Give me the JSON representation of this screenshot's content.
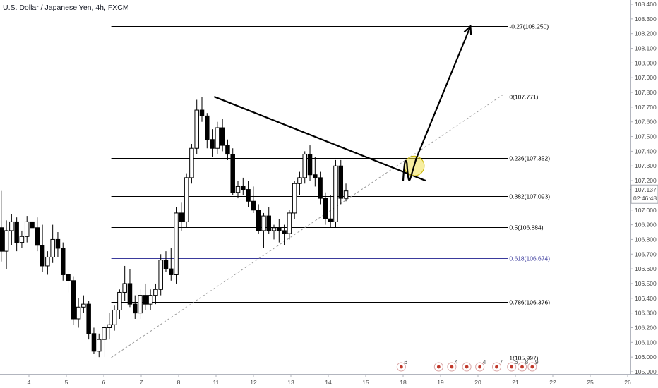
{
  "header": {
    "title": "U.S. Dollar / Japanese Yen, 4h, FXCM"
  },
  "colors": {
    "up": "#ffffff",
    "down": "#000000",
    "wick": "#000000",
    "fib_line": "#000000",
    "fib_0618": "#3a3a9c",
    "trend_dotted": "#9a9a9a",
    "highlight": "#f0e050",
    "price_tag_bg": "#ffffff",
    "axis_text": "#4a4a4a"
  },
  "chart_data": {
    "type": "candlestick",
    "ylim": [
      105.9,
      108.4
    ],
    "y_ticks": [
      "108.400",
      "108.300",
      "108.200",
      "108.100",
      "108.000",
      "107.900",
      "107.800",
      "107.700",
      "107.600",
      "107.500",
      "107.400",
      "107.300",
      "107.200",
      "107.100",
      "107.000",
      "106.900",
      "106.800",
      "106.700",
      "106.600",
      "106.500",
      "106.400",
      "106.300",
      "106.200",
      "106.100",
      "106.000",
      "105.900"
    ],
    "x_ticks": [
      {
        "label": "4",
        "day": 4
      },
      {
        "label": "5",
        "day": 5
      },
      {
        "label": "6",
        "day": 6
      },
      {
        "label": "7",
        "day": 7
      },
      {
        "label": "8",
        "day": 8
      },
      {
        "label": "11",
        "day": 9
      },
      {
        "label": "12",
        "day": 10
      },
      {
        "label": "13",
        "day": 11
      },
      {
        "label": "14",
        "day": 12
      },
      {
        "label": "15",
        "day": 13
      },
      {
        "label": "18",
        "day": 14
      },
      {
        "label": "19",
        "day": 15
      },
      {
        "label": "20",
        "day": 16
      },
      {
        "label": "21",
        "day": 17
      },
      {
        "label": "22",
        "day": 18
      },
      {
        "label": "25",
        "day": 19
      },
      {
        "label": "26",
        "day": 20
      }
    ],
    "current_price": {
      "price": "107.137",
      "countdown": "02:46:48",
      "value": 107.137
    },
    "fib_levels": [
      {
        "label": "-0.27(108.250)",
        "value": 108.25,
        "special": false
      },
      {
        "label": "0(107.771)",
        "value": 107.771,
        "special": false
      },
      {
        "label": "0.236(107.352)",
        "value": 107.352,
        "special": false
      },
      {
        "label": "0.382(107.093)",
        "value": 107.093,
        "special": false
      },
      {
        "label": "0.5(106.884)",
        "value": 106.884,
        "special": false
      },
      {
        "label": "0.618(106.674)",
        "value": 106.674,
        "special": true
      },
      {
        "label": "0.786(106.376)",
        "value": 106.376,
        "special": false
      },
      {
        "label": "1(105.997)",
        "value": 105.997,
        "special": false
      }
    ],
    "fib_span": {
      "x_start_day": 6.2,
      "x_end_day": 16.8
    },
    "candles": [
      {
        "o": 106.88,
        "h": 107.13,
        "l": 106.65,
        "c": 106.72
      },
      {
        "o": 106.72,
        "h": 106.93,
        "l": 106.6,
        "c": 106.86
      },
      {
        "o": 106.86,
        "h": 106.97,
        "l": 106.76,
        "c": 106.92
      },
      {
        "o": 106.92,
        "h": 106.95,
        "l": 106.72,
        "c": 106.78
      },
      {
        "o": 106.78,
        "h": 106.86,
        "l": 106.74,
        "c": 106.82
      },
      {
        "o": 106.82,
        "h": 106.96,
        "l": 106.78,
        "c": 106.92
      },
      {
        "o": 106.92,
        "h": 107.1,
        "l": 106.84,
        "c": 106.88
      },
      {
        "o": 106.88,
        "h": 106.95,
        "l": 106.72,
        "c": 106.76
      },
      {
        "o": 106.76,
        "h": 106.9,
        "l": 106.58,
        "c": 106.62
      },
      {
        "o": 106.62,
        "h": 106.72,
        "l": 106.56,
        "c": 106.68
      },
      {
        "o": 106.68,
        "h": 106.9,
        "l": 106.64,
        "c": 106.8
      },
      {
        "o": 106.8,
        "h": 106.85,
        "l": 106.68,
        "c": 106.74
      },
      {
        "o": 106.74,
        "h": 106.78,
        "l": 106.52,
        "c": 106.56
      },
      {
        "o": 106.56,
        "h": 106.6,
        "l": 106.44,
        "c": 106.52
      },
      {
        "o": 106.52,
        "h": 106.55,
        "l": 106.22,
        "c": 106.26
      },
      {
        "o": 106.26,
        "h": 106.4,
        "l": 106.2,
        "c": 106.34
      },
      {
        "o": 106.34,
        "h": 106.42,
        "l": 106.3,
        "c": 106.36
      },
      {
        "o": 106.36,
        "h": 106.38,
        "l": 106.12,
        "c": 106.16
      },
      {
        "o": 106.16,
        "h": 106.2,
        "l": 106.02,
        "c": 106.04
      },
      {
        "o": 106.04,
        "h": 106.16,
        "l": 106.0,
        "c": 106.12
      },
      {
        "o": 106.12,
        "h": 106.22,
        "l": 106.0,
        "c": 106.2
      },
      {
        "o": 106.2,
        "h": 106.3,
        "l": 106.12,
        "c": 106.22
      },
      {
        "o": 106.22,
        "h": 106.35,
        "l": 106.18,
        "c": 106.32
      },
      {
        "o": 106.32,
        "h": 106.46,
        "l": 106.26,
        "c": 106.44
      },
      {
        "o": 106.44,
        "h": 106.62,
        "l": 106.38,
        "c": 106.5
      },
      {
        "o": 106.5,
        "h": 106.6,
        "l": 106.34,
        "c": 106.36
      },
      {
        "o": 106.36,
        "h": 106.42,
        "l": 106.26,
        "c": 106.3
      },
      {
        "o": 106.3,
        "h": 106.46,
        "l": 106.26,
        "c": 106.42
      },
      {
        "o": 106.42,
        "h": 106.5,
        "l": 106.32,
        "c": 106.36
      },
      {
        "o": 106.36,
        "h": 106.46,
        "l": 106.32,
        "c": 106.42
      },
      {
        "o": 106.42,
        "h": 106.5,
        "l": 106.36,
        "c": 106.46
      },
      {
        "o": 106.46,
        "h": 106.7,
        "l": 106.42,
        "c": 106.66
      },
      {
        "o": 106.66,
        "h": 106.72,
        "l": 106.58,
        "c": 106.6
      },
      {
        "o": 106.6,
        "h": 106.74,
        "l": 106.52,
        "c": 106.56
      },
      {
        "o": 106.56,
        "h": 107.02,
        "l": 106.5,
        "c": 106.98
      },
      {
        "o": 106.98,
        "h": 107.05,
        "l": 106.86,
        "c": 106.92
      },
      {
        "o": 106.92,
        "h": 107.25,
        "l": 106.88,
        "c": 107.22
      },
      {
        "o": 107.22,
        "h": 107.45,
        "l": 107.18,
        "c": 107.42
      },
      {
        "o": 107.42,
        "h": 107.75,
        "l": 107.38,
        "c": 107.68
      },
      {
        "o": 107.68,
        "h": 107.77,
        "l": 107.6,
        "c": 107.64
      },
      {
        "o": 107.64,
        "h": 107.66,
        "l": 107.42,
        "c": 107.48
      },
      {
        "o": 107.48,
        "h": 107.55,
        "l": 107.36,
        "c": 107.42
      },
      {
        "o": 107.42,
        "h": 107.6,
        "l": 107.38,
        "c": 107.56
      },
      {
        "o": 107.56,
        "h": 107.62,
        "l": 107.4,
        "c": 107.44
      },
      {
        "o": 107.44,
        "h": 107.48,
        "l": 107.34,
        "c": 107.38
      },
      {
        "o": 107.38,
        "h": 107.42,
        "l": 107.1,
        "c": 107.12
      },
      {
        "o": 107.12,
        "h": 107.2,
        "l": 107.08,
        "c": 107.16
      },
      {
        "o": 107.16,
        "h": 107.22,
        "l": 107.1,
        "c": 107.14
      },
      {
        "o": 107.14,
        "h": 107.2,
        "l": 107.02,
        "c": 107.06
      },
      {
        "o": 107.06,
        "h": 107.16,
        "l": 106.98,
        "c": 107.0
      },
      {
        "o": 107.0,
        "h": 107.04,
        "l": 106.84,
        "c": 106.86
      },
      {
        "o": 106.86,
        "h": 106.98,
        "l": 106.74,
        "c": 106.96
      },
      {
        "o": 106.96,
        "h": 107.02,
        "l": 106.84,
        "c": 106.86
      },
      {
        "o": 106.86,
        "h": 106.9,
        "l": 106.8,
        "c": 106.88
      },
      {
        "o": 106.88,
        "h": 106.94,
        "l": 106.78,
        "c": 106.86
      },
      {
        "o": 106.86,
        "h": 106.9,
        "l": 106.76,
        "c": 106.84
      },
      {
        "o": 106.84,
        "h": 107.0,
        "l": 106.8,
        "c": 106.98
      },
      {
        "o": 106.98,
        "h": 107.2,
        "l": 106.94,
        "c": 107.18
      },
      {
        "o": 107.18,
        "h": 107.26,
        "l": 107.1,
        "c": 107.22
      },
      {
        "o": 107.22,
        "h": 107.4,
        "l": 107.18,
        "c": 107.38
      },
      {
        "o": 107.38,
        "h": 107.44,
        "l": 107.2,
        "c": 107.24
      },
      {
        "o": 107.24,
        "h": 107.36,
        "l": 107.16,
        "c": 107.22
      },
      {
        "o": 107.22,
        "h": 107.26,
        "l": 107.04,
        "c": 107.08
      },
      {
        "o": 107.08,
        "h": 107.12,
        "l": 106.9,
        "c": 106.94
      },
      {
        "o": 106.94,
        "h": 107.1,
        "l": 106.88,
        "c": 106.92
      },
      {
        "o": 106.92,
        "h": 107.34,
        "l": 106.88,
        "c": 107.3
      },
      {
        "o": 107.3,
        "h": 107.34,
        "l": 107.04,
        "c": 107.08
      },
      {
        "o": 107.08,
        "h": 107.18,
        "l": 107.06,
        "c": 107.13
      }
    ],
    "candle_x": {
      "first_day": 3.26,
      "step_day": 0.1375
    },
    "trendline": [
      {
        "day": 8.95,
        "value": 107.771
      },
      {
        "day": 14.6,
        "value": 107.2
      }
    ],
    "dotted_line": [
      {
        "day": 6.2,
        "value": 105.997
      },
      {
        "day": 16.7,
        "value": 107.79
      }
    ],
    "arrow_path": [
      {
        "day": 14.0,
        "value": 107.2
      },
      {
        "day": 14.1,
        "value": 107.32
      },
      {
        "day": 14.2,
        "value": 107.22
      },
      {
        "day": 14.35,
        "value": 107.35
      },
      {
        "day": 15.8,
        "value": 108.25
      }
    ],
    "highlight": {
      "day": 14.3,
      "value": 107.3
    },
    "events": [
      {
        "day": 13.95,
        "label": "6"
      },
      {
        "day": 14.95,
        "label": ""
      },
      {
        "day": 15.3,
        "label": "4"
      },
      {
        "day": 15.7,
        "label": ""
      },
      {
        "day": 16.05,
        "label": "4"
      },
      {
        "day": 16.5,
        "label": "7"
      },
      {
        "day": 16.9,
        "label": "6"
      },
      {
        "day": 17.18,
        "label": "8"
      },
      {
        "day": 17.45,
        "label": "9"
      }
    ]
  }
}
